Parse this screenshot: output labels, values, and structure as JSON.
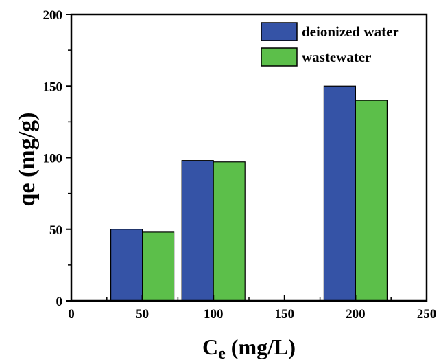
{
  "chart_data": {
    "type": "bar",
    "x": [
      50,
      100,
      200
    ],
    "series": [
      {
        "name": "deionized water",
        "values": [
          50,
          98,
          150
        ],
        "color": "#3553a6"
      },
      {
        "name": "wastewater",
        "values": [
          48,
          97,
          140
        ],
        "color": "#5cbf4a"
      }
    ],
    "xlim": [
      0,
      250
    ],
    "ylim": [
      0,
      200
    ],
    "xticks": [
      0,
      50,
      100,
      150,
      200,
      250
    ],
    "yticks": [
      0,
      50,
      100,
      150,
      200
    ],
    "xlabel": {
      "main": "C",
      "sub": "e",
      "rest": " (mg/L)"
    },
    "ylabel": "qe (mg/g)",
    "legend": "top-right",
    "grid": false
  }
}
